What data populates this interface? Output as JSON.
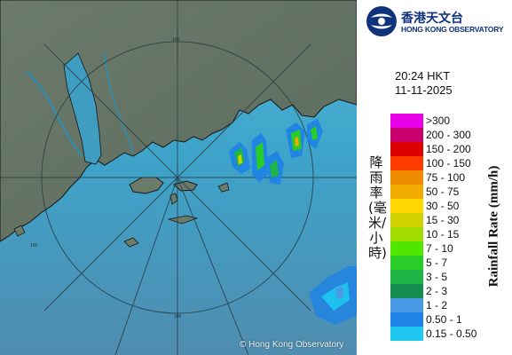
{
  "header": {
    "org_name_zh": "香港天文台",
    "org_name_en": "HONG KONG OBSERVATORY"
  },
  "timestamp": {
    "time": "20:24 HKT",
    "date": "11-11-2025"
  },
  "map": {
    "range_ring_label": "100",
    "copyright": "© Hong Kong Observatory",
    "colors": {
      "sea": "#3fa5c8",
      "land": "#6a7a6a",
      "coast": "#1a1a1a",
      "rings": "#2b3d46"
    }
  },
  "legend": {
    "title_zh": "降雨率(毫米/小時)",
    "title_en": "Rainfall Rate (mm/h)",
    "entries": [
      {
        "range": ">300",
        "color": "#e800e8"
      },
      {
        "range": "200 - 300",
        "color": "#c8006e"
      },
      {
        "range": "150 - 200",
        "color": "#dc0000"
      },
      {
        "range": "100 - 150",
        "color": "#ff3c00"
      },
      {
        "range": "75 - 100",
        "color": "#f08c00"
      },
      {
        "range": "50 - 75",
        "color": "#f0aa00"
      },
      {
        "range": "30 - 50",
        "color": "#ffd700"
      },
      {
        "range": "15 - 30",
        "color": "#d2d200"
      },
      {
        "range": "10 - 15",
        "color": "#a0dc00"
      },
      {
        "range": "7 - 10",
        "color": "#50e600"
      },
      {
        "range": "5 - 7",
        "color": "#28cd28"
      },
      {
        "range": "3 - 5",
        "color": "#1eb446"
      },
      {
        "range": "2 - 3",
        "color": "#148c50"
      },
      {
        "range": "1 - 2",
        "color": "#4a9be6"
      },
      {
        "range": "0.50 - 1",
        "color": "#1e82e6"
      },
      {
        "range": "0.15 - 0.50",
        "color": "#1ec8f0"
      }
    ]
  }
}
